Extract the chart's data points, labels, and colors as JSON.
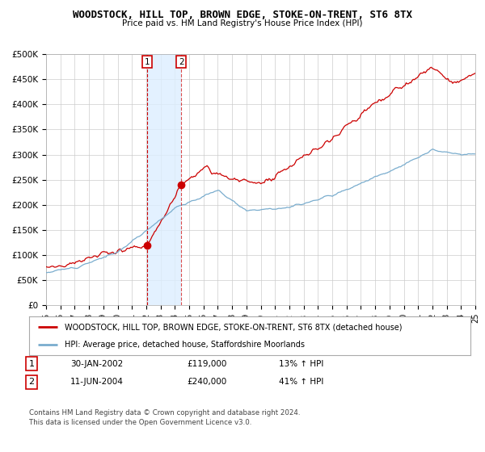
{
  "title": "WOODSTOCK, HILL TOP, BROWN EDGE, STOKE-ON-TRENT, ST6 8TX",
  "subtitle": "Price paid vs. HM Land Registry's House Price Index (HPI)",
  "legend_line1": "WOODSTOCK, HILL TOP, BROWN EDGE, STOKE-ON-TRENT, ST6 8TX (detached house)",
  "legend_line2": "HPI: Average price, detached house, Staffordshire Moorlands",
  "annotation1_num": "1",
  "annotation1_date": "30-JAN-2002",
  "annotation1_price": "£119,000",
  "annotation1_hpi": "13% ↑ HPI",
  "annotation2_num": "2",
  "annotation2_date": "11-JUN-2004",
  "annotation2_price": "£240,000",
  "annotation2_hpi": "41% ↑ HPI",
  "footnote1": "Contains HM Land Registry data © Crown copyright and database right 2024.",
  "footnote2": "This data is licensed under the Open Government Licence v3.0.",
  "red_color": "#cc0000",
  "blue_color": "#7aadce",
  "shade_color": "#ddeeff",
  "annotation_box_color": "#cc0000",
  "grid_color": "#cccccc",
  "ylim": [
    0,
    500000
  ],
  "yticks": [
    0,
    50000,
    100000,
    150000,
    200000,
    250000,
    300000,
    350000,
    400000,
    450000,
    500000
  ],
  "sale1_x": 2002.08,
  "sale1_y": 119000,
  "sale2_x": 2004.44,
  "sale2_y": 240000,
  "xmin": 1995,
  "xmax": 2025
}
